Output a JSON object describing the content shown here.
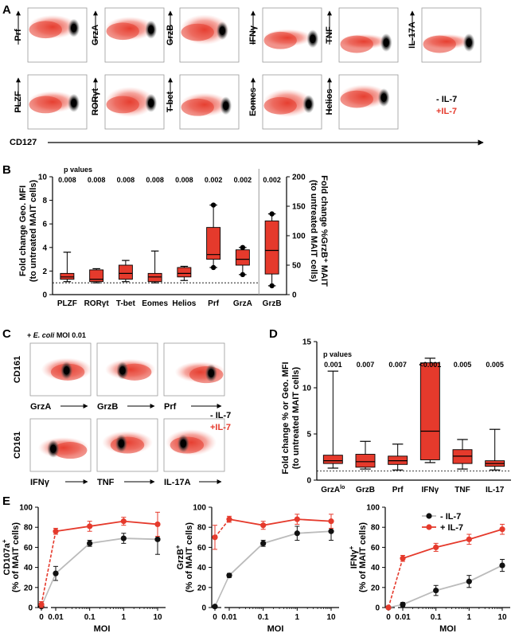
{
  "panel_labels": {
    "A": "A",
    "B": "B",
    "C": "C",
    "D": "D",
    "E": "E"
  },
  "panelA": {
    "row1_markers": [
      "Prf",
      "GrzA",
      "GrzB",
      "IFNγ",
      "TNF",
      "IL-17A"
    ],
    "row2_markers": [
      "PLZF",
      "RORγt",
      "T-bet",
      "Eomes",
      "Helios"
    ],
    "x_marker": "CD127",
    "legend_minus": "- IL-7",
    "legend_plus": "+IL-7",
    "colors": {
      "minus": "#000000",
      "plus": "#e53a2c"
    }
  },
  "panelB": {
    "pvalues_title": "p values",
    "ylabel_left": "Fold change Geo. MFI (to untreated MAIT cells)",
    "ylabel_right": "Fold change %GrzB+ MAIT (to untreated MAIT cells)",
    "chart_data": {
      "type": "box",
      "categories": [
        "PLZF",
        "RORγt",
        "T-bet",
        "Eomes",
        "Helios",
        "Prf",
        "GrzA",
        "GrzB"
      ],
      "pvalues": [
        "0.008",
        "0.008",
        "0.008",
        "0.008",
        "0.008",
        "0.002",
        "0.002",
        "0.002"
      ],
      "left_ylim": [
        0,
        10
      ],
      "left_yticks": [
        "0",
        "2",
        "4",
        "6",
        "8",
        "10"
      ],
      "right_ylim": [
        0,
        200
      ],
      "right_yticks": [
        "0",
        "50",
        "100",
        "150",
        "200"
      ],
      "reference_line": 1,
      "boxes": [
        {
          "category": "PLZF",
          "min": 1.1,
          "q1": 1.3,
          "median": 1.5,
          "q3": 1.8,
          "max": 3.6
        },
        {
          "category": "RORγt",
          "min": 1.0,
          "q1": 1.1,
          "median": 1.3,
          "q3": 2.1,
          "max": 2.2
        },
        {
          "category": "T-bet",
          "min": 1.1,
          "q1": 1.3,
          "median": 1.8,
          "q3": 2.5,
          "max": 2.9
        },
        {
          "category": "Eomes",
          "min": 1.0,
          "q1": 1.1,
          "median": 1.5,
          "q3": 1.8,
          "max": 3.7
        },
        {
          "category": "Helios",
          "min": 1.2,
          "q1": 1.5,
          "median": 1.8,
          "q3": 2.3,
          "max": 2.4
        },
        {
          "category": "Prf",
          "min": 2.3,
          "q1": 3.0,
          "median": 3.4,
          "q3": 5.7,
          "max": 7.6
        },
        {
          "category": "GrzA",
          "min": 1.7,
          "q1": 2.5,
          "median": 3.0,
          "q3": 3.8,
          "max": 4.0,
          "axis": "left"
        },
        {
          "category": "GrzB",
          "min": 15,
          "q1": 35,
          "median": 75,
          "q3": 125,
          "max": 137,
          "axis": "right"
        }
      ]
    }
  },
  "panelC": {
    "treatment_prefix": "+",
    "treatment_name": "E. coli",
    "moi_label": "MOI 0.01",
    "ylabel": "CD161",
    "row1_markers": [
      "GrzA",
      "GrzB",
      "Prf"
    ],
    "row2_markers": [
      "IFNγ",
      "TNF",
      "IL-17A"
    ],
    "legend_minus": "- IL-7",
    "legend_plus": "+IL-7"
  },
  "panelD": {
    "pvalues_title": "p values",
    "ylabel": "Fold change % or Geo. MFI (to untreated MAIT cells)",
    "chart_data": {
      "type": "box",
      "categories": [
        "GrzAlo",
        "GrzB",
        "Prf",
        "IFNγ",
        "TNF",
        "IL-17"
      ],
      "pvalues": [
        "0.001",
        "0.007",
        "0.007",
        "<0.001",
        "0.005",
        "0.005"
      ],
      "ylim": [
        0,
        15
      ],
      "yticks": [
        "0",
        "5",
        "10",
        "15"
      ],
      "reference_line": 1,
      "boxes": [
        {
          "category": "GrzAlo",
          "min": 1.3,
          "q1": 1.8,
          "median": 2.1,
          "q3": 2.7,
          "max": 11.8
        },
        {
          "category": "GrzB",
          "min": 1.2,
          "q1": 1.4,
          "median": 2.0,
          "q3": 2.8,
          "max": 4.2
        },
        {
          "category": "Prf",
          "min": 1.1,
          "q1": 1.7,
          "median": 2.1,
          "q3": 2.6,
          "max": 3.9
        },
        {
          "category": "IFNγ",
          "min": 1.9,
          "q1": 2.2,
          "median": 5.3,
          "q3": 12.7,
          "max": 13.2
        },
        {
          "category": "TNF",
          "min": 1.2,
          "q1": 1.8,
          "median": 2.6,
          "q3": 3.3,
          "max": 4.4
        },
        {
          "category": "IL-17",
          "min": 1.1,
          "q1": 1.5,
          "median": 1.8,
          "q3": 2.1,
          "max": 5.5
        }
      ]
    }
  },
  "panelE": {
    "legend_minus": "- IL-7",
    "legend_plus": "+ IL-7",
    "chart_data": [
      {
        "type": "line",
        "xlabel": "MOI",
        "ylabel": "CD107a+ (% of MAIT cells)",
        "ylim": [
          0,
          100
        ],
        "yticks": [
          "0",
          "20",
          "40",
          "60",
          "80",
          "100"
        ],
        "x": [
          0,
          0.01,
          0.1,
          1,
          10
        ],
        "xticks": [
          "0",
          "0.01",
          "0.1",
          "1",
          "10"
        ],
        "series": [
          {
            "name": "- IL-7",
            "values": [
              1,
              34,
              64,
              69,
              68
            ],
            "errors": [
              2,
              7,
              3,
              5,
              15
            ]
          },
          {
            "name": "+ IL-7",
            "values": [
              3,
              76,
              81,
              86,
              83
            ],
            "errors": [
              3,
              3,
              5,
              4,
              12
            ]
          }
        ]
      },
      {
        "type": "line",
        "xlabel": "MOI",
        "ylabel": "GrzB+ (% of MAIT cells)",
        "ylim": [
          0,
          100
        ],
        "yticks": [
          "0",
          "20",
          "40",
          "60",
          "80",
          "100"
        ],
        "x": [
          0,
          0.01,
          0.1,
          1,
          10
        ],
        "xticks": [
          "0",
          "0.01",
          "0.1",
          "1",
          "10"
        ],
        "series": [
          {
            "name": "- IL-7",
            "values": [
              1,
              32,
              64,
              74,
              76
            ],
            "errors": [
              1,
              2,
              3,
              7,
              9
            ]
          },
          {
            "name": "+ IL-7",
            "values": [
              70,
              88,
              82,
              88,
              86
            ],
            "errors": [
              12,
              3,
              4,
              5,
              7
            ]
          }
        ]
      },
      {
        "type": "line",
        "xlabel": "MOI",
        "ylabel": "IFNγ+ (% of MAIT cells)",
        "ylim": [
          0,
          100
        ],
        "yticks": [
          "0",
          "20",
          "40",
          "60",
          "80",
          "100"
        ],
        "x": [
          0,
          0.01,
          0.1,
          1,
          10
        ],
        "xticks": [
          "0",
          "0.01",
          "0.1",
          "1",
          "10"
        ],
        "series": [
          {
            "name": "- IL-7",
            "values": [
              0,
              3,
              17,
              26,
              42
            ],
            "errors": [
              1,
              2,
              5,
              6,
              6
            ]
          },
          {
            "name": "+ IL-7",
            "values": [
              0,
              49,
              60,
              68,
              78
            ],
            "errors": [
              1,
              3,
              4,
              5,
              5
            ]
          }
        ]
      }
    ]
  }
}
